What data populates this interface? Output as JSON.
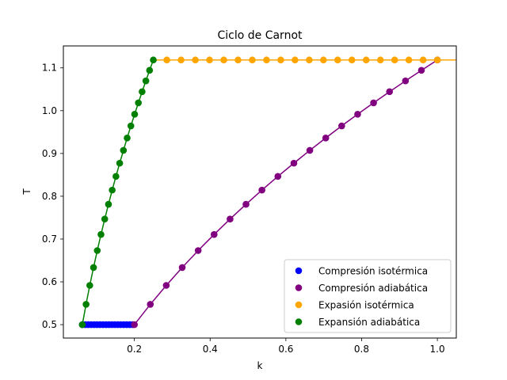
{
  "chart_data": {
    "type": "scatter",
    "title": "Ciclo de Carnot",
    "xlabel": "k",
    "ylabel": "T",
    "xlim": [
      0.0125,
      1.05
    ],
    "ylim": [
      0.4687,
      1.1513
    ],
    "x_ticks": [
      {
        "value": 0.2,
        "label": "0.2"
      },
      {
        "value": 0.4,
        "label": "0.4"
      },
      {
        "value": 0.6,
        "label": "0.6"
      },
      {
        "value": 0.8,
        "label": "0.8"
      },
      {
        "value": 1.0,
        "label": "1.0"
      }
    ],
    "y_ticks": [
      {
        "value": 0.5,
        "label": "0.5"
      },
      {
        "value": 0.6,
        "label": "0.6"
      },
      {
        "value": 0.7,
        "label": "0.7"
      },
      {
        "value": 0.8,
        "label": "0.8"
      },
      {
        "value": 0.9,
        "label": "0.9"
      },
      {
        "value": 1.0,
        "label": "1.0"
      },
      {
        "value": 1.1,
        "label": "1.1"
      }
    ],
    "grid": false,
    "legend_position": "lower-right",
    "series": [
      {
        "name": "Compresión isotérmica",
        "color": "#0000ff",
        "x": [
          0.0625,
          0.0703,
          0.0781,
          0.0859,
          0.0938,
          0.1016,
          0.1094,
          0.1172,
          0.125,
          0.1328,
          0.1406,
          0.1484,
          0.1563,
          0.1641,
          0.1719,
          0.1797,
          0.1875,
          0.1953
        ],
        "y": [
          0.5,
          0.5,
          0.5,
          0.5,
          0.5,
          0.5,
          0.5,
          0.5,
          0.5,
          0.5,
          0.5,
          0.5,
          0.5,
          0.5,
          0.5,
          0.5,
          0.5,
          0.5
        ]
      },
      {
        "name": "Compresión adiabática",
        "color": "#800080",
        "x": [
          0.2,
          0.2421,
          0.2842,
          0.3263,
          0.3684,
          0.4105,
          0.4526,
          0.4947,
          0.5368,
          0.5789,
          0.6211,
          0.6632,
          0.7053,
          0.7474,
          0.7895,
          0.8316,
          0.8737,
          0.9158,
          0.9579,
          1.0
        ],
        "y": [
          0.5,
          0.5474,
          0.5917,
          0.6335,
          0.6731,
          0.7107,
          0.7467,
          0.7812,
          0.8144,
          0.8464,
          0.8773,
          0.9072,
          0.9362,
          0.9644,
          0.9917,
          1.0183,
          1.0443,
          1.0696,
          1.0943,
          1.1185
        ]
      },
      {
        "name": "Expasión isotérmica",
        "color": "#ffa500",
        "x": [
          0.2857,
          0.3233,
          0.3609,
          0.3985,
          0.4361,
          0.4737,
          0.5113,
          0.5489,
          0.5865,
          0.6241,
          0.6617,
          0.6992,
          0.7368,
          0.7744,
          0.812,
          0.8496,
          0.8872,
          0.9248,
          0.9624,
          1.0
        ],
        "y": [
          1.1185,
          1.1185,
          1.1185,
          1.1185,
          1.1185,
          1.1185,
          1.1185,
          1.1185,
          1.1185,
          1.1185,
          1.1185,
          1.1185,
          1.1185,
          1.1185,
          1.1185,
          1.1185,
          1.1185,
          1.1185,
          1.1185,
          1.1185
        ]
      },
      {
        "name": "Expansión adiabática",
        "color": "#008000",
        "x": [
          0.0625,
          0.0724,
          0.0822,
          0.0921,
          0.102,
          0.1118,
          0.1217,
          0.1316,
          0.1414,
          0.1513,
          0.1612,
          0.1711,
          0.1809,
          0.1908,
          0.2007,
          0.2105,
          0.2204,
          0.2303,
          0.2401,
          0.25
        ],
        "y": [
          0.5,
          0.5474,
          0.5917,
          0.6335,
          0.6731,
          0.7107,
          0.7467,
          0.7812,
          0.8144,
          0.8464,
          0.8773,
          0.9072,
          0.9362,
          0.9644,
          0.9917,
          1.0183,
          1.0443,
          1.0696,
          1.0943,
          1.1185
        ]
      }
    ]
  }
}
